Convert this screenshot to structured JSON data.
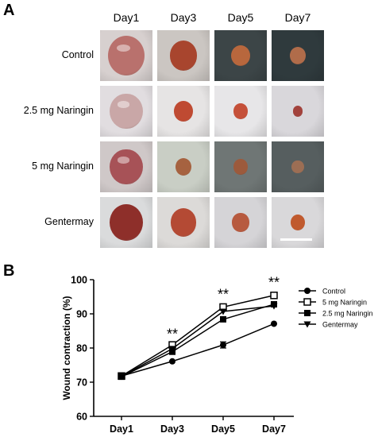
{
  "panel_a": {
    "letter": "A",
    "columns": [
      "Day1",
      "Day3",
      "Day5",
      "Day7"
    ],
    "rows": [
      {
        "label": "Control",
        "tiles": [
          {
            "bg": "#d7d0cf",
            "wound": "#b9716d",
            "size": 0.78,
            "shine": true
          },
          {
            "bg": "#cbc6c2",
            "wound": "#a8452e",
            "size": 0.58,
            "shine": false
          },
          {
            "bg": "#3c4547",
            "wound": "#b8673d",
            "size": 0.42,
            "shine": false
          },
          {
            "bg": "#2f3a3d",
            "wound": "#b06c4a",
            "size": 0.34,
            "shine": false
          }
        ]
      },
      {
        "label": "2.5 mg Naringin",
        "tiles": [
          {
            "bg": "#e1dde0",
            "wound": "#c9a7a7",
            "size": 0.7,
            "shine": true
          },
          {
            "bg": "#e6e4e4",
            "wound": "#bf4a32",
            "size": 0.4,
            "shine": false
          },
          {
            "bg": "#e7e6e8",
            "wound": "#c55039",
            "size": 0.3,
            "shine": false
          },
          {
            "bg": "#d9d7db",
            "wound": "#a2423c",
            "size": 0.22,
            "shine": false
          }
        ]
      },
      {
        "label": "5 mg Naringin",
        "tiles": [
          {
            "bg": "#cfc8c8",
            "wound": "#a75257",
            "size": 0.7,
            "shine": true
          },
          {
            "bg": "#c9cec5",
            "wound": "#a66240",
            "size": 0.34,
            "shine": false
          },
          {
            "bg": "#6f7675",
            "wound": "#9c5a3c",
            "size": 0.3,
            "shine": false
          },
          {
            "bg": "#565e5f",
            "wound": "#9c6e54",
            "size": 0.26,
            "shine": false
          }
        ]
      },
      {
        "label": "Gentermay",
        "tiles": [
          {
            "bg": "#dadbdc",
            "wound": "#8e2f2a",
            "size": 0.72,
            "shine": false
          },
          {
            "bg": "#dcdad8",
            "wound": "#b44a34",
            "size": 0.55,
            "shine": false
          },
          {
            "bg": "#d5d4d7",
            "wound": "#b75a3f",
            "size": 0.36,
            "shine": false
          },
          {
            "bg": "#d9d8da",
            "wound": "#c05a2e",
            "size": 0.32,
            "shine": false
          }
        ]
      }
    ]
  },
  "panel_b": {
    "letter": "B"
  },
  "chart_data": {
    "type": "line",
    "categories": [
      "Day1",
      "Day3",
      "Day5",
      "Day7"
    ],
    "ylabel": "Wound contraction (%)",
    "xlabel": "",
    "ylim": [
      60,
      100
    ],
    "yticks": [
      60,
      70,
      80,
      90,
      100
    ],
    "legend_position": "right",
    "series": [
      {
        "name": "Control",
        "marker": "circle",
        "values": [
          71.8,
          76.1,
          80.9,
          87.1
        ],
        "errors": [
          0,
          0,
          0.9,
          0
        ]
      },
      {
        "name": "5 mg Naringin",
        "marker": "square-open",
        "values": [
          71.8,
          80.9,
          92.0,
          95.4
        ],
        "errors": [
          0,
          0,
          0,
          0
        ]
      },
      {
        "name": "2.5 mg Naringin",
        "marker": "square",
        "values": [
          71.6,
          78.9,
          88.4,
          92.8
        ],
        "errors": [
          0,
          0,
          0,
          0
        ]
      },
      {
        "name": "Gentermay",
        "marker": "triangle-down",
        "values": [
          71.7,
          79.8,
          90.7,
          92.3
        ],
        "errors": [
          0,
          0,
          0,
          0
        ]
      }
    ],
    "annotations": [
      {
        "category": "Day3",
        "y": 84.5,
        "text": "**"
      },
      {
        "category": "Day5",
        "y": 96.2,
        "text": "**"
      },
      {
        "category": "Day7",
        "y": 99.6,
        "text": "**"
      }
    ]
  }
}
